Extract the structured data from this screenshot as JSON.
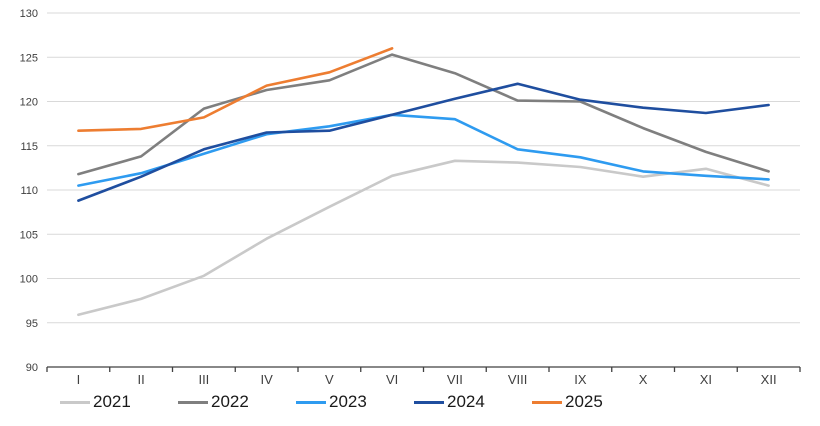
{
  "chart_data": {
    "type": "line",
    "title": "",
    "xlabel": "",
    "ylabel": "",
    "categories": [
      "I",
      "II",
      "III",
      "IV",
      "V",
      "VI",
      "VII",
      "VIII",
      "IX",
      "X",
      "XI",
      "XII"
    ],
    "series": [
      {
        "name": "2021",
        "color": "#c9c9c9",
        "values": [
          95.9,
          97.7,
          100.3,
          104.5,
          108.1,
          111.6,
          113.3,
          113.1,
          112.6,
          111.5,
          112.4,
          110.5
        ]
      },
      {
        "name": "2022",
        "color": "#7f7f7f",
        "values": [
          111.8,
          113.8,
          119.2,
          121.3,
          122.4,
          125.3,
          123.2,
          120.1,
          120.0,
          117.0,
          114.3,
          112.1
        ]
      },
      {
        "name": "2023",
        "color": "#2e9bf0",
        "values": [
          110.5,
          111.9,
          114.1,
          116.3,
          117.2,
          118.5,
          118.0,
          114.6,
          113.7,
          112.1,
          111.6,
          111.2
        ]
      },
      {
        "name": "2024",
        "color": "#1f4e9f",
        "values": [
          108.8,
          111.5,
          114.6,
          116.5,
          116.7,
          118.5,
          120.3,
          122.0,
          120.2,
          119.3,
          118.7,
          119.6
        ]
      },
      {
        "name": "2025",
        "color": "#ed7d31",
        "values": [
          116.7,
          116.9,
          118.2,
          121.8,
          123.3,
          126.0
        ]
      }
    ],
    "ylim": [
      90,
      130
    ],
    "ytick_step": 5,
    "ytick_labels": [
      "90",
      "95",
      "100",
      "105",
      "110",
      "115",
      "120",
      "125",
      "130"
    ],
    "grid": "horizontal",
    "legend_position": "bottom"
  },
  "colors": {
    "background": "#ffffff",
    "gridline": "#d9d9d9",
    "axis_line": "#404040",
    "tick_label": "#404040",
    "legend_text": "#1a1a1a"
  }
}
